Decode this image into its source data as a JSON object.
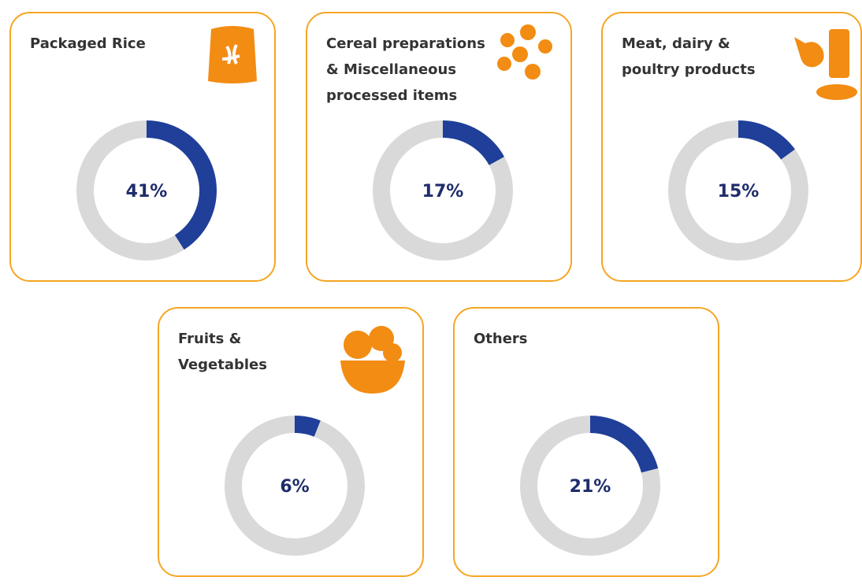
{
  "chart_data": [
    {
      "type": "donut",
      "title": [
        "Packaged Rice"
      ],
      "values": [
        41
      ],
      "value_labels": [
        "41%"
      ],
      "color": "#1f3f99",
      "track_color": "#d9d9d9"
    },
    {
      "type": "donut",
      "title": [
        "Cereal preparations",
        "& Miscellaneous",
        "processed items"
      ],
      "values": [
        17
      ],
      "value_labels": [
        "17%"
      ],
      "color": "#1f3f99",
      "track_color": "#d9d9d9"
    },
    {
      "type": "donut",
      "title": [
        "Meat, dairy &",
        "poultry products"
      ],
      "values": [
        15
      ],
      "value_labels": [
        "15%"
      ],
      "color": "#1f3f99",
      "track_color": "#d9d9d9"
    },
    {
      "type": "donut",
      "title": [
        "Fruits &",
        "Vegetables"
      ],
      "values": [
        6
      ],
      "value_labels": [
        "6%"
      ],
      "color": "#1f3f99",
      "track_color": "#d9d9d9"
    },
    {
      "type": "donut",
      "title": [
        "Others"
      ],
      "values": [
        21
      ],
      "value_labels": [
        "21%"
      ],
      "color": "#1f3f99",
      "track_color": "#d9d9d9"
    }
  ]
}
